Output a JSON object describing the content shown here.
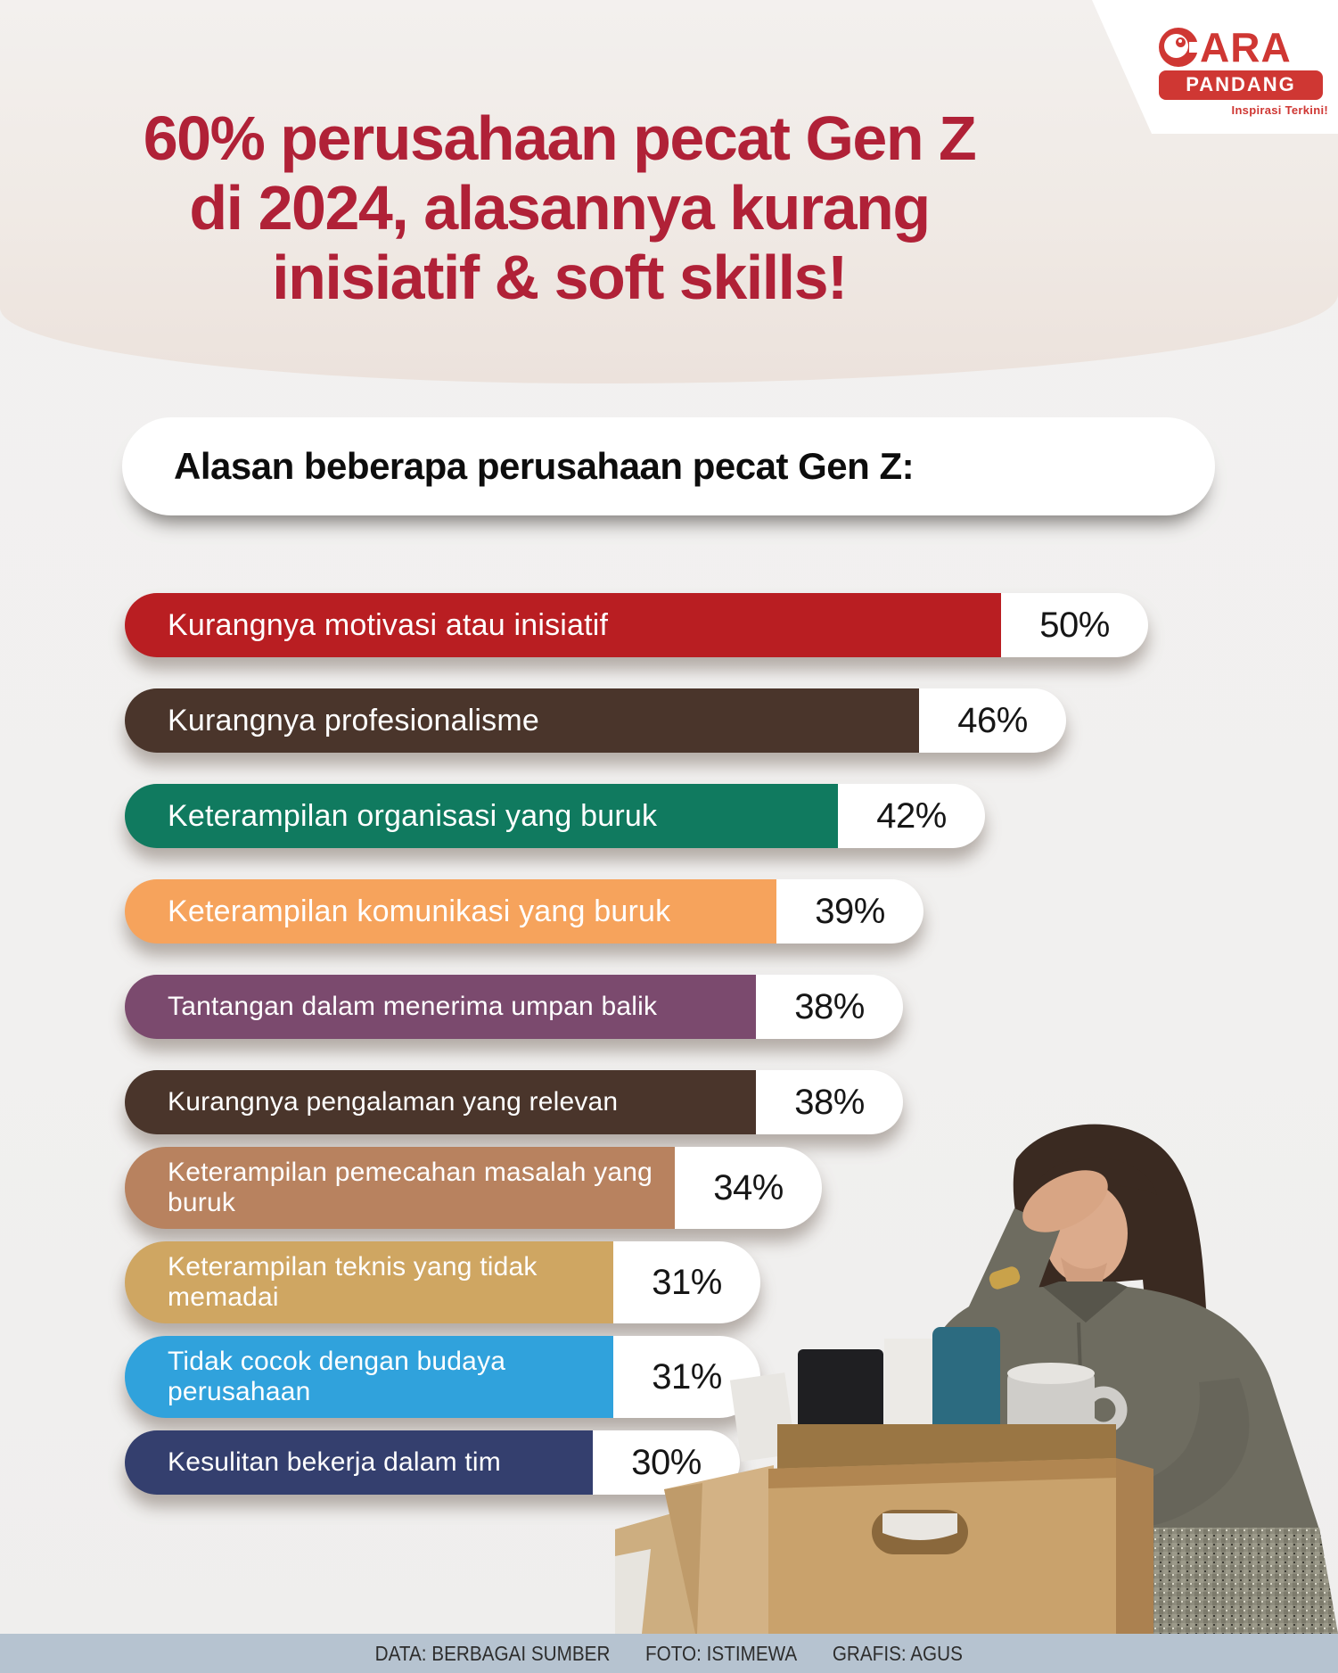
{
  "brand": {
    "name_line1": "CARA",
    "name_line2": "PANDANG",
    "tagline": "Inspirasi Terkini!",
    "color": "#cf3733"
  },
  "title": {
    "lines": [
      "60% perusahaan pecat Gen Z",
      "di 2024, alasannya kurang",
      "inisiatif & soft skills!"
    ],
    "color": "#b02137"
  },
  "subtitle": "Alasan beberapa perusahaan pecat Gen Z:",
  "chart_data": {
    "type": "bar",
    "orientation": "horizontal",
    "title": "Alasan beberapa perusahaan pecat Gen Z:",
    "unit": "%",
    "xlim": [
      0,
      50
    ],
    "grid": false,
    "legend": "none",
    "categories": [
      "Kurangnya motivasi atau inisiatif",
      "Kurangnya profesionalisme",
      "Keterampilan organisasi yang buruk",
      "Keterampilan komunikasi yang buruk",
      "Tantangan dalam menerima umpan balik",
      "Kurangnya pengalaman yang relevan",
      "Keterampilan pemecahan masalah yang buruk",
      "Keterampilan teknis yang tidak memadai",
      "Tidak cocok dengan budaya perusahaan",
      "Kesulitan bekerja dalam tim"
    ],
    "values": [
      50,
      46,
      42,
      39,
      38,
      38,
      34,
      31,
      31,
      30
    ],
    "bars": [
      {
        "label": "Kurangnya motivasi atau inisiatif",
        "value": 50,
        "color": "#b91e22",
        "text_size": "lg",
        "lines": 1
      },
      {
        "label": "Kurangnya profesionalisme",
        "value": 46,
        "color": "#4a352b",
        "text_size": "lg",
        "lines": 1
      },
      {
        "label": "Keterampilan organisasi yang buruk",
        "value": 42,
        "color": "#107a5f",
        "text_size": "lg",
        "lines": 1
      },
      {
        "label": "Keterampilan komunikasi yang buruk",
        "value": 39,
        "color": "#f6a35c",
        "text_size": "lg",
        "lines": 1
      },
      {
        "label": "Tantangan dalam menerima umpan balik",
        "value": 38,
        "color": "#7b4a6e",
        "text_size": "sm",
        "lines": 1
      },
      {
        "label": "Kurangnya pengalaman yang relevan",
        "value": 38,
        "color": "#4a352b",
        "text_size": "sm",
        "lines": 1
      },
      {
        "label": "Keterampilan pemecahan masalah yang buruk",
        "value": 34,
        "color": "#b8825f",
        "text_size": "sm",
        "lines": 2
      },
      {
        "label": "Keterampilan teknis yang tidak memadai",
        "value": 31,
        "color": "#cfa662",
        "text_size": "sm",
        "lines": 2
      },
      {
        "label": "Tidak cocok dengan budaya perusahaan",
        "value": 31,
        "color": "#30a2dc",
        "text_size": "sm",
        "lines": 2
      },
      {
        "label": "Kesulitan bekerja dalam tim",
        "value": 30,
        "color": "#343f6e",
        "text_size": "sm",
        "lines": 1
      }
    ]
  },
  "footer": {
    "bg": "#b6c3d0",
    "items": [
      "DATA: BERBAGAI SUMBER",
      "FOTO: ISTIMEWA",
      "GRAFIS: AGUS"
    ]
  },
  "illustration": {
    "alt": "Stressed woman with hand on forehead packing binders and a mug into a cardboard box"
  }
}
